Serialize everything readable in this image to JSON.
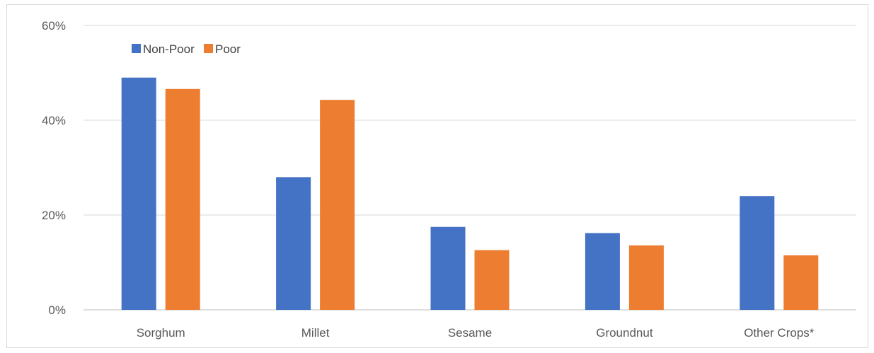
{
  "chart_data": {
    "type": "bar",
    "categories": [
      "Sorghum",
      "Millet",
      "Sesame",
      "Groundnut",
      "Other Crops*"
    ],
    "series": [
      {
        "name": "Non-Poor",
        "color": "#4472c4",
        "values": [
          49,
          28,
          17.5,
          16.2,
          24
        ]
      },
      {
        "name": "Poor",
        "color": "#ed7d31",
        "values": [
          46.6,
          44.3,
          12.6,
          13.6,
          11.5
        ]
      }
    ],
    "yticks": [
      "0%",
      "20%",
      "40%",
      "60%"
    ],
    "ylim": [
      0,
      60
    ],
    "grid": true,
    "legend_position": "top-left"
  }
}
